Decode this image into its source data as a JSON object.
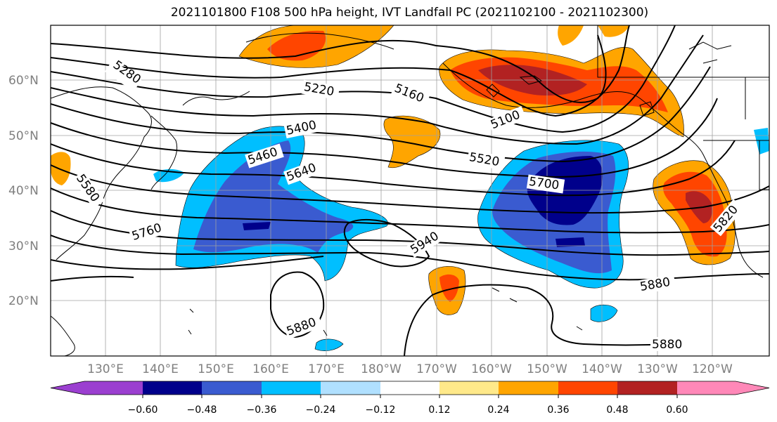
{
  "title": "2021101800 F108 500 hPa height, IVT Landfall PC (2021102100 - 2021102300)",
  "lat_labels": [
    "60°N",
    "50°N",
    "40°N",
    "30°N",
    "20°N"
  ],
  "lon_labels": [
    "130°E",
    "140°E",
    "150°E",
    "160°E",
    "170°E",
    "180°W",
    "170°W",
    "160°W",
    "150°W",
    "140°W",
    "130°W",
    "120°W"
  ],
  "contour_labels": [
    "5280",
    "5220",
    "5160",
    "5100",
    "5400",
    "5460",
    "5520",
    "5640",
    "5700",
    "5760",
    "5820",
    "5880",
    "5880",
    "5880",
    "5940",
    "5580"
  ],
  "colorbar": {
    "ticks": [
      "−0.60",
      "−0.48",
      "−0.36",
      "−0.24",
      "−0.12",
      "0.12",
      "0.24",
      "0.36",
      "0.48",
      "0.60"
    ],
    "colors": [
      "#9b3fd0",
      "#00008b",
      "#3a5bd0",
      "#00bfff",
      "#b0e0ff",
      "#ffffff",
      "#ffe98a",
      "#ffa500",
      "#ff4500",
      "#b22222",
      "#ff88b8"
    ]
  }
}
